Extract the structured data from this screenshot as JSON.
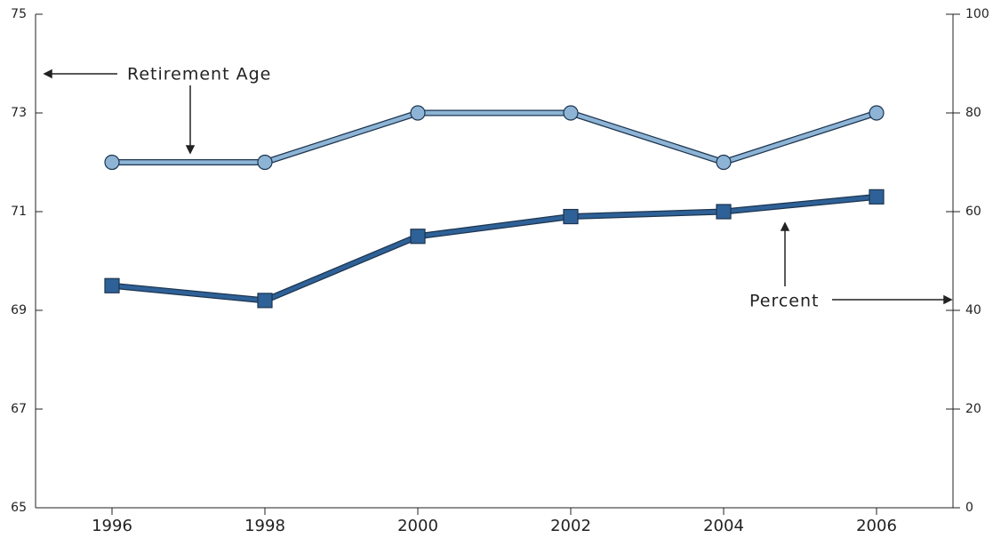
{
  "chart_data": {
    "type": "line",
    "x": [
      1996,
      1998,
      2000,
      2002,
      2004,
      2006
    ],
    "xlim": [
      1995,
      2007
    ],
    "xticks": [
      1996,
      1998,
      2000,
      2002,
      2004,
      2006
    ],
    "ylim": [
      65,
      75
    ],
    "yticks": [
      65,
      67,
      69,
      71,
      73,
      75
    ],
    "y2lim": [
      0,
      100
    ],
    "y2ticks": [
      0,
      20,
      40,
      60,
      80,
      100
    ],
    "series": [
      {
        "name": "Retirement Age",
        "color": "#8db4d5",
        "marker": "circle",
        "values": [
          72,
          72,
          73,
          73,
          72,
          73
        ]
      },
      {
        "name": "Percent",
        "color": "#2e6197",
        "marker": "square",
        "axis": "y2",
        "values": [
          45,
          42,
          55,
          59,
          60,
          63
        ]
      }
    ]
  }
}
